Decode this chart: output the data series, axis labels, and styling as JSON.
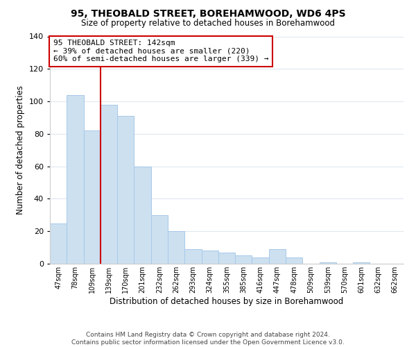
{
  "title": "95, THEOBALD STREET, BOREHAMWOOD, WD6 4PS",
  "subtitle": "Size of property relative to detached houses in Borehamwood",
  "xlabel": "Distribution of detached houses by size in Borehamwood",
  "ylabel": "Number of detached properties",
  "bin_labels": [
    "47sqm",
    "78sqm",
    "109sqm",
    "139sqm",
    "170sqm",
    "201sqm",
    "232sqm",
    "262sqm",
    "293sqm",
    "324sqm",
    "355sqm",
    "385sqm",
    "416sqm",
    "447sqm",
    "478sqm",
    "509sqm",
    "539sqm",
    "570sqm",
    "601sqm",
    "632sqm",
    "662sqm"
  ],
  "bar_values": [
    25,
    104,
    82,
    98,
    91,
    60,
    30,
    20,
    9,
    8,
    7,
    5,
    4,
    9,
    4,
    0,
    1,
    0,
    1,
    0,
    0
  ],
  "bar_color": "#cce0f0",
  "bar_edge_color": "#a8c8e8",
  "highlight_index": 3,
  "highlight_line_color": "#cc0000",
  "annotation_text": "95 THEOBALD STREET: 142sqm\n← 39% of detached houses are smaller (220)\n60% of semi-detached houses are larger (339) →",
  "annotation_box_color": "#ffffff",
  "annotation_box_edge": "#cc0000",
  "ylim": [
    0,
    140
  ],
  "yticks": [
    0,
    20,
    40,
    60,
    80,
    100,
    120,
    140
  ],
  "footnote1": "Contains HM Land Registry data © Crown copyright and database right 2024.",
  "footnote2": "Contains public sector information licensed under the Open Government Licence v3.0.",
  "background_color": "#ffffff",
  "grid_color": "#dde8f0"
}
